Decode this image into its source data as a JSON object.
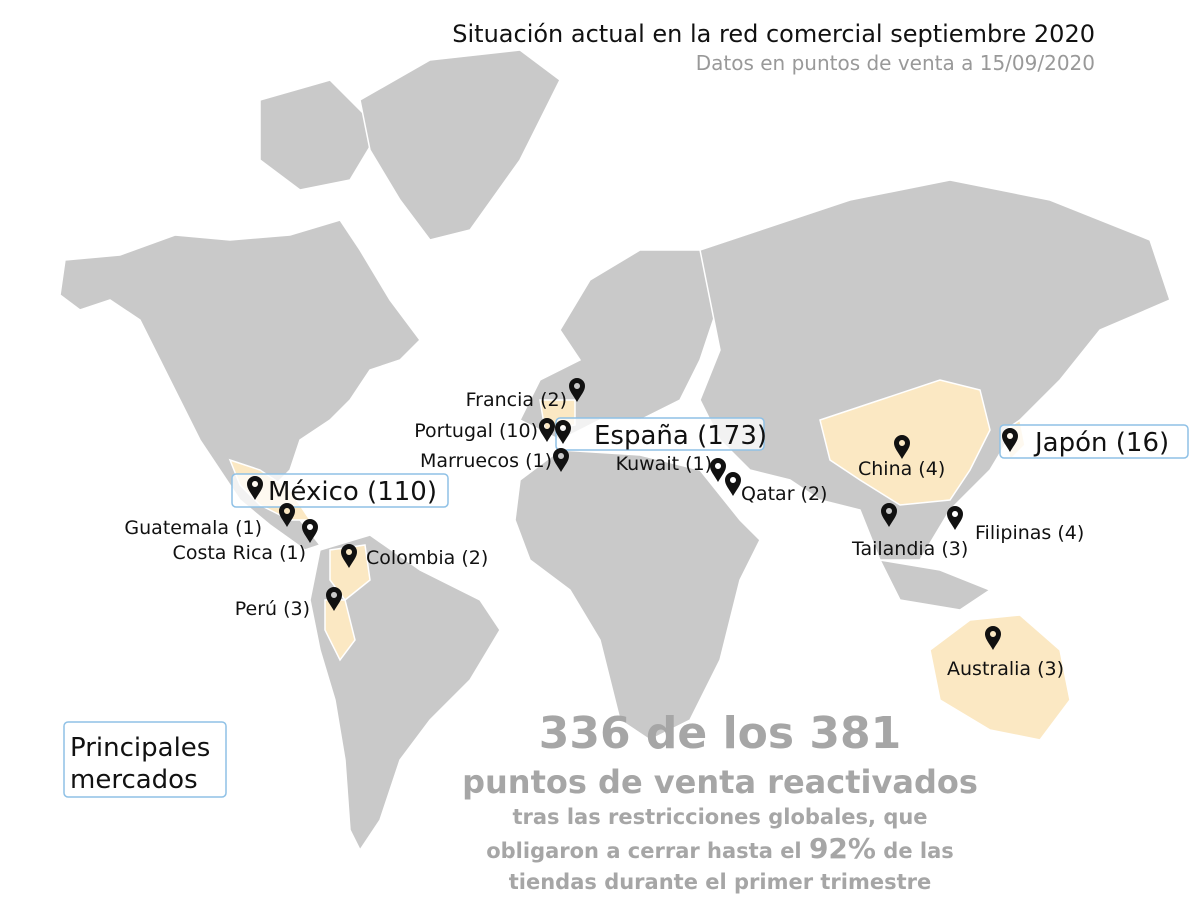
{
  "header": {
    "title": "Situación actual en la red comercial septiembre 2020",
    "subtitle": "Datos en puntos de venta a 15/09/2020"
  },
  "main_markets": [
    {
      "label": "España (173)"
    },
    {
      "label": "México (110)"
    },
    {
      "label": "Japón (16)"
    }
  ],
  "markers": [
    {
      "label": "Francia (2)"
    },
    {
      "label": "Portugal (10)"
    },
    {
      "label": "Marruecos (1)"
    },
    {
      "label": "Guatemala (1)"
    },
    {
      "label": "Costa Rica (1)"
    },
    {
      "label": "Colombia (2)"
    },
    {
      "label": "Perú (3)"
    },
    {
      "label": "Kuwait (1)"
    },
    {
      "label": "Qatar (2)"
    },
    {
      "label": "China (4)"
    },
    {
      "label": "Tailandia (3)"
    },
    {
      "label": "Filipinas (4)"
    },
    {
      "label": "Australia (3)"
    }
  ],
  "legend": {
    "lines": [
      "Principales",
      "mercados"
    ]
  },
  "summary": {
    "headline": "336 de los 381",
    "subheadline": "puntos de venta reactivados",
    "line1": "tras las restricciones globales, que",
    "line2_before": "obligaron a cerrar hasta el",
    "highlight": "92%",
    "line2_after": "de las",
    "line3": "tiendas durante el primer trimestre"
  }
}
